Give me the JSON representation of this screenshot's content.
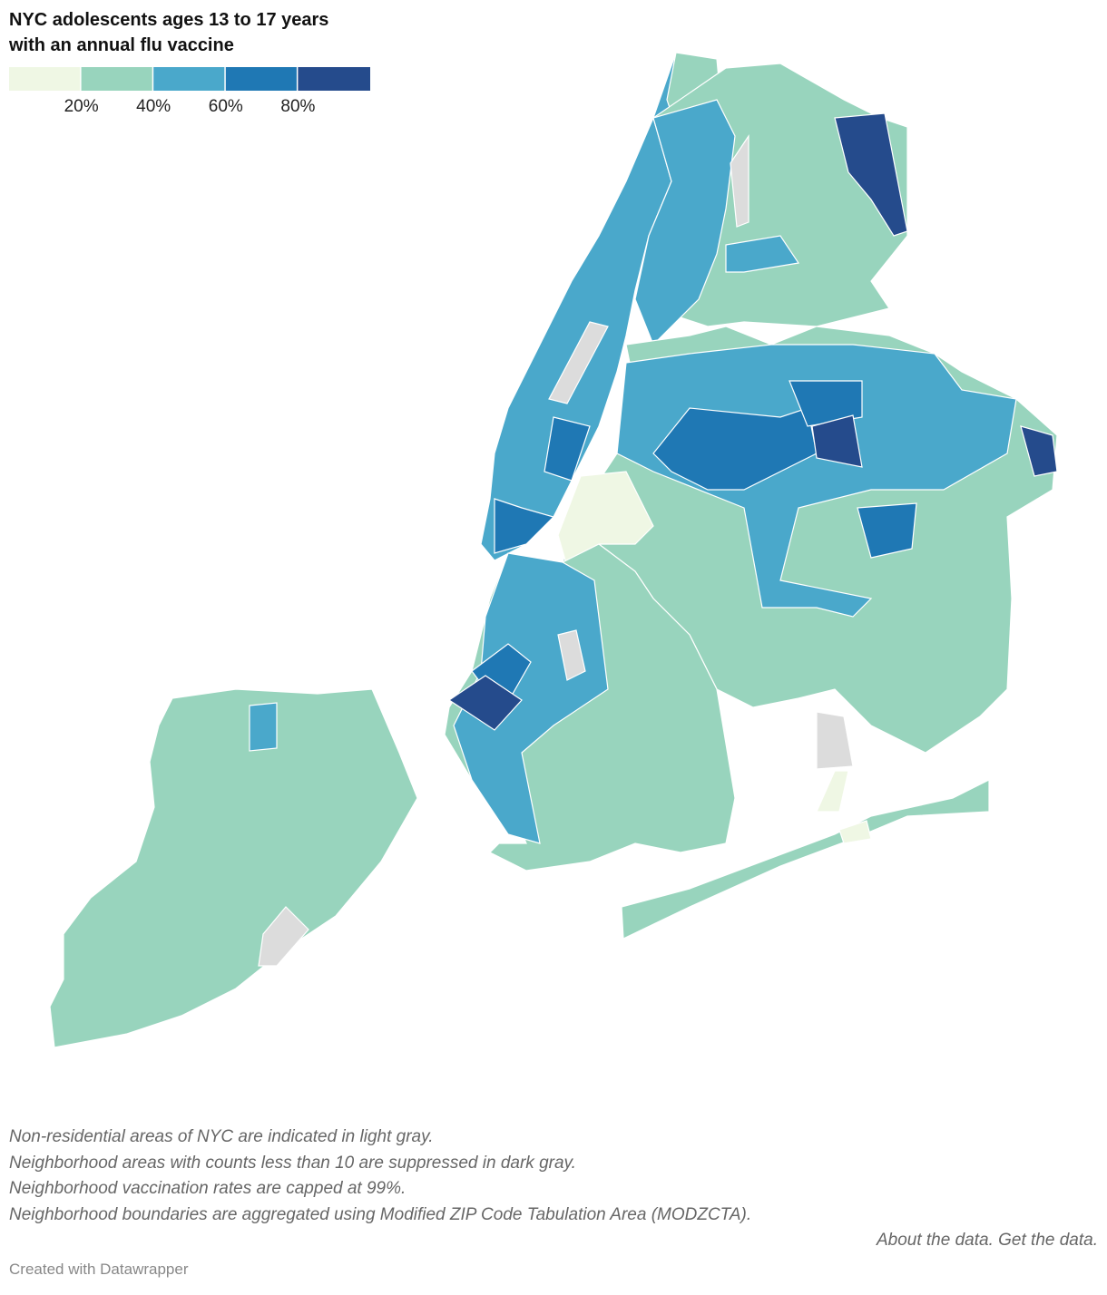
{
  "title": "NYC adolescents ages 13 to 17 years with an annual flu vaccine",
  "legend": {
    "colors": [
      "#eff7e4",
      "#98d4bd",
      "#4aa8cb",
      "#1f78b4",
      "#254b8c"
    ],
    "xlim": [
      0,
      100
    ],
    "xticks": [
      {
        "value": 20,
        "label": "20%"
      },
      {
        "value": 40,
        "label": "40%"
      },
      {
        "value": 60,
        "label": "60%"
      },
      {
        "value": 80,
        "label": "80%"
      }
    ]
  },
  "notes": [
    "Non-residential areas of NYC are indicated in light gray.",
    "Neighborhood areas with counts less than 10 are suppressed in dark gray.",
    "Neighborhood vaccination rates are capped at 99%.",
    "Neighborhood boundaries are aggregated using Modified ZIP Code Tabulation Area (MODZCTA)."
  ],
  "links": [
    "About the data.",
    "Get the data."
  ],
  "credit": "Created with Datawrapper"
}
